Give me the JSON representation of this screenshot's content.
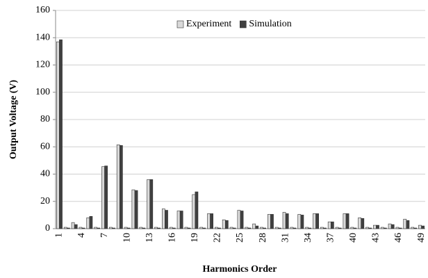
{
  "chart_data": {
    "type": "bar",
    "xlabel": "Harmonics Order",
    "ylabel": "Output Voltage (V)",
    "categories": [
      "1",
      null,
      null,
      "4",
      null,
      null,
      "7",
      null,
      null,
      "10",
      null,
      null,
      "13",
      null,
      null,
      "16",
      null,
      null,
      "19",
      null,
      null,
      "22",
      null,
      null,
      "25",
      null,
      null,
      "28",
      null,
      null,
      "31",
      null,
      null,
      "34",
      null,
      null,
      "37",
      null,
      null,
      "40",
      null,
      null,
      "43",
      null,
      null,
      "46",
      null,
      null,
      "49"
    ],
    "series": [
      {
        "name": "Experiment",
        "color": "#d9d9d9",
        "values": [
          137,
          1,
          4.5,
          1,
          8,
          1,
          45.5,
          1,
          61.5,
          1,
          28.5,
          1,
          36,
          1,
          14.5,
          1,
          13,
          1,
          25,
          1,
          11,
          1,
          6.5,
          1,
          13.5,
          1,
          3.5,
          1,
          10.5,
          1,
          12,
          1,
          10.5,
          1,
          11,
          1,
          5,
          1,
          11,
          1,
          8,
          1,
          2.5,
          1,
          3.5,
          1,
          7,
          1,
          2.5
        ]
      },
      {
        "name": "Simulation",
        "color": "#404040",
        "values": [
          138.5,
          0.5,
          3,
          0.5,
          9,
          0.5,
          46,
          0.5,
          61,
          0.5,
          28,
          0.5,
          36,
          0.5,
          13.5,
          0.5,
          13,
          0.5,
          27,
          0.5,
          11,
          0.5,
          6,
          0.5,
          13,
          0.5,
          2,
          0.5,
          10.5,
          0.5,
          11,
          0.5,
          10,
          0.5,
          11,
          0.5,
          5,
          0.5,
          11,
          0.5,
          7.5,
          0.5,
          2.5,
          0.5,
          3,
          0.5,
          6,
          0.5,
          2
        ]
      }
    ],
    "ylim": [
      0,
      160
    ],
    "yticks": [
      0,
      20,
      40,
      60,
      80,
      100,
      120,
      140,
      160
    ],
    "grid": true,
    "legend": "top"
  }
}
